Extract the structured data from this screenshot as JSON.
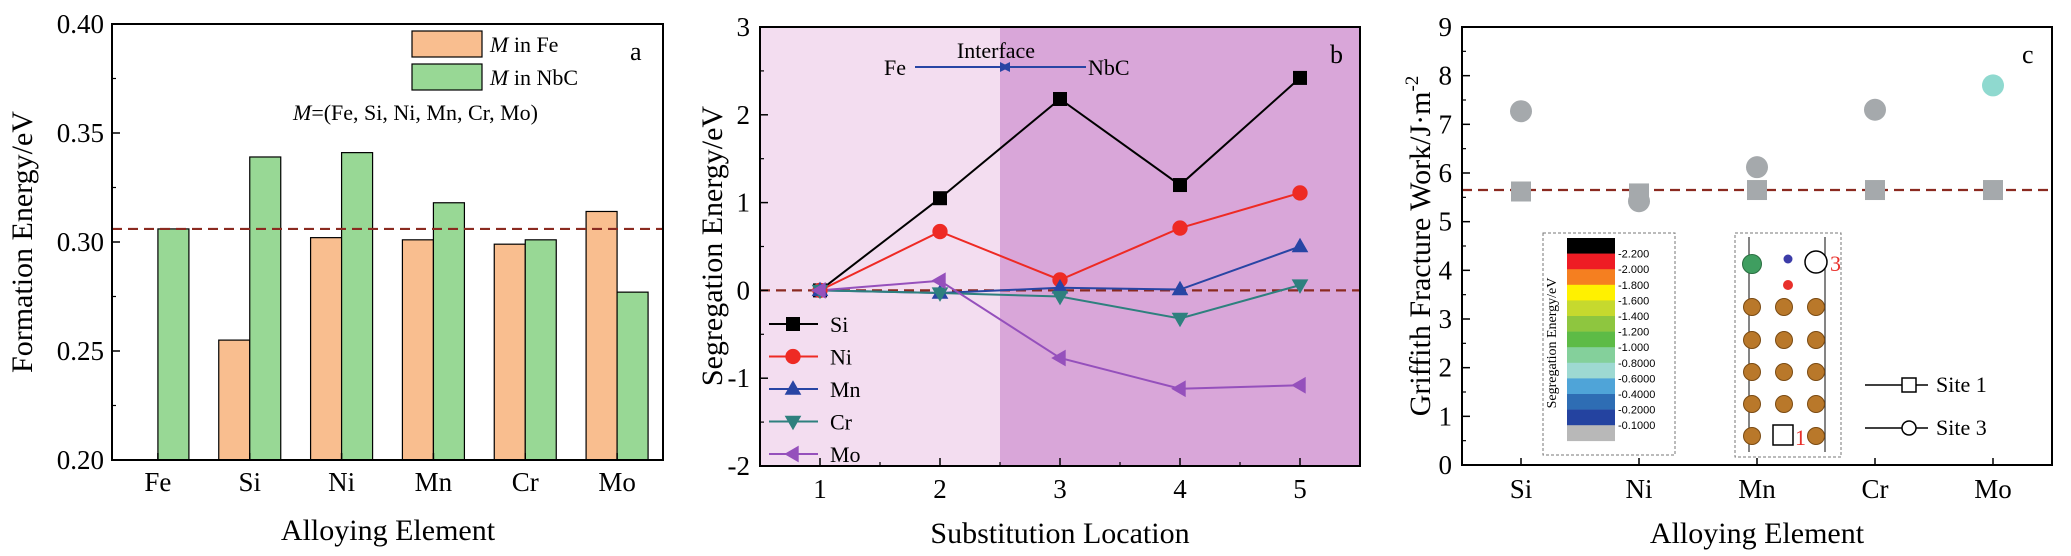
{
  "chart_data": [
    {
      "type": "bar",
      "panel": "a",
      "categories": [
        "Fe",
        "Si",
        "Ni",
        "Mn",
        "Cr",
        "Mo"
      ],
      "series": [
        {
          "name_prefix": "M",
          "name_suffix": " in Fe",
          "color": "#F9BE8F",
          "values": [
            null,
            0.255,
            0.302,
            0.301,
            0.299,
            0.314
          ]
        },
        {
          "name_prefix": "M",
          "name_suffix": " in NbC",
          "color": "#98D895",
          "values": [
            0.306,
            0.339,
            0.341,
            0.318,
            0.301,
            0.277
          ]
        }
      ],
      "reference_line": 0.306,
      "annotation_prefix": "M",
      "annotation_suffix": "=(Fe, Si, Ni, Mn, Cr, Mo)",
      "xlabel": "Alloying Element",
      "ylabel": "Formation Energy/eV",
      "ylim": [
        0.2,
        0.4
      ],
      "yticks": [
        "0.20",
        "0.25",
        "0.30",
        "0.35",
        "0.40"
      ]
    },
    {
      "type": "line",
      "panel": "b",
      "x": [
        1,
        2,
        3,
        4,
        5
      ],
      "series": [
        {
          "name": "Si",
          "color": "#000000",
          "marker": "square",
          "values": [
            0,
            1.05,
            2.18,
            1.2,
            2.42
          ]
        },
        {
          "name": "Ni",
          "color": "#EE2A24",
          "marker": "circle",
          "values": [
            0,
            0.67,
            0.12,
            0.71,
            1.11
          ]
        },
        {
          "name": "Mn",
          "color": "#2845A4",
          "marker": "triangle-up",
          "values": [
            0,
            -0.03,
            0.03,
            0.01,
            0.5
          ]
        },
        {
          "name": "Cr",
          "color": "#2E807E",
          "marker": "triangle-down",
          "values": [
            0,
            -0.03,
            -0.07,
            -0.32,
            0.06
          ]
        },
        {
          "name": "Mo",
          "color": "#9550BC",
          "marker": "triangle-left",
          "values": [
            0,
            0.11,
            -0.77,
            -1.12,
            -1.08
          ]
        }
      ],
      "reference_line": 0,
      "interface_x": 2.5,
      "region_colors": {
        "fe": "#F3DDF0",
        "nbc": "#D9A6D9"
      },
      "annotations": {
        "interface": "Interface",
        "left": "Fe",
        "right": "NbC"
      },
      "xlabel": "Substitution Location",
      "ylabel": "Segregation Energy/eV",
      "xlim": [
        0.5,
        5.5
      ],
      "ylim": [
        -2,
        3
      ],
      "xticks": [
        "1",
        "2",
        "3",
        "4",
        "5"
      ],
      "yticks": [
        "-2",
        "-1",
        "0",
        "1",
        "2",
        "3"
      ]
    },
    {
      "type": "scatter",
      "panel": "c",
      "categories": [
        "Si",
        "Ni",
        "Mn",
        "Cr",
        "Mo"
      ],
      "series": [
        {
          "name": "Site 1",
          "marker": "square",
          "color": "#A5A9AC",
          "values": [
            5.62,
            5.58,
            5.65,
            5.65,
            5.65
          ]
        },
        {
          "name": "Site 3",
          "marker": "circle",
          "colors": [
            "#A5A9AC",
            "#A5A9AC",
            "#A5A9AC",
            "#A5A9AC",
            "#8FD9CF"
          ],
          "values": [
            7.27,
            5.42,
            6.12,
            7.3,
            7.8
          ]
        }
      ],
      "reference_line": 5.65,
      "xlabel": "Alloying Element",
      "ylabel": "Griffith Fracture Work/J·m",
      "ylabel_sup": "-2",
      "ylim": [
        0,
        9
      ],
      "yticks": [
        "0",
        "1",
        "2",
        "3",
        "4",
        "5",
        "6",
        "7",
        "8",
        "9"
      ],
      "colorbar": {
        "title": "Segregation Energy/eV",
        "labels": [
          "-2.200",
          "-2.000",
          "-1.800",
          "-1.600",
          "-1.400",
          "-1.200",
          "-1.000",
          "-0.8000",
          "-0.6000",
          "-0.4000",
          "-0.2000",
          "-0.1000"
        ],
        "colors": [
          "#000000",
          "#EE1C24",
          "#F57F20",
          "#FFF100",
          "#C6D92E",
          "#8EC63F",
          "#5DBB46",
          "#84D09B",
          "#9ED9D2",
          "#4FA4D8",
          "#2E6DB4",
          "#2443A0",
          "#B8B8B8"
        ]
      },
      "site_labels": {
        "top": "3",
        "bottom": "1"
      }
    }
  ]
}
